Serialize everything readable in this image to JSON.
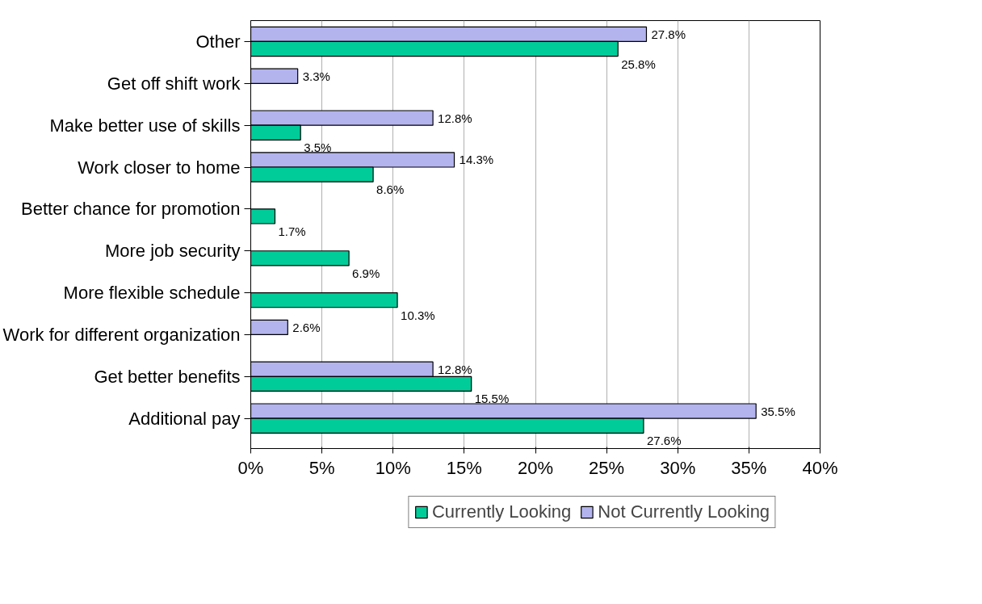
{
  "chart_data": {
    "type": "bar",
    "orientation": "horizontal",
    "categories": [
      "Other",
      "Get off shift work",
      "Make better use of skills",
      "Work closer to home",
      "Better chance for promotion",
      "More job security",
      "More flexible schedule",
      "Work for different organization",
      "Get better benefits",
      "Additional pay"
    ],
    "series": [
      {
        "name": "Not Currently Looking",
        "color": "#b3b3ee",
        "values": [
          27.8,
          3.3,
          12.8,
          14.3,
          null,
          null,
          null,
          2.6,
          12.8,
          35.5
        ],
        "value_labels": [
          "27.8%",
          "3.3%",
          "12.8%",
          "14.3%",
          null,
          null,
          null,
          "2.6%",
          "12.8%",
          "35.5%"
        ]
      },
      {
        "name": "Currently Looking",
        "color": "#00cc99",
        "values": [
          25.8,
          null,
          3.5,
          8.6,
          1.7,
          6.9,
          10.3,
          null,
          15.5,
          27.6
        ],
        "value_labels": [
          "25.8%",
          null,
          "3.5%",
          "8.6%",
          "1.7%",
          "6.9%",
          "10.3%",
          null,
          "15.5%",
          "27.6%"
        ]
      }
    ],
    "xlim": [
      0,
      40
    ],
    "xticks": [
      {
        "value": 0,
        "label": "0%"
      },
      {
        "value": 5,
        "label": "5%"
      },
      {
        "value": 10,
        "label": "10%"
      },
      {
        "value": 15,
        "label": "15%"
      },
      {
        "value": 20,
        "label": "20%"
      },
      {
        "value": 25,
        "label": "25%"
      },
      {
        "value": 30,
        "label": "30%"
      },
      {
        "value": 35,
        "label": "35%"
      },
      {
        "value": 40,
        "label": "40%"
      }
    ],
    "grid": "x",
    "legend": "bottom"
  }
}
